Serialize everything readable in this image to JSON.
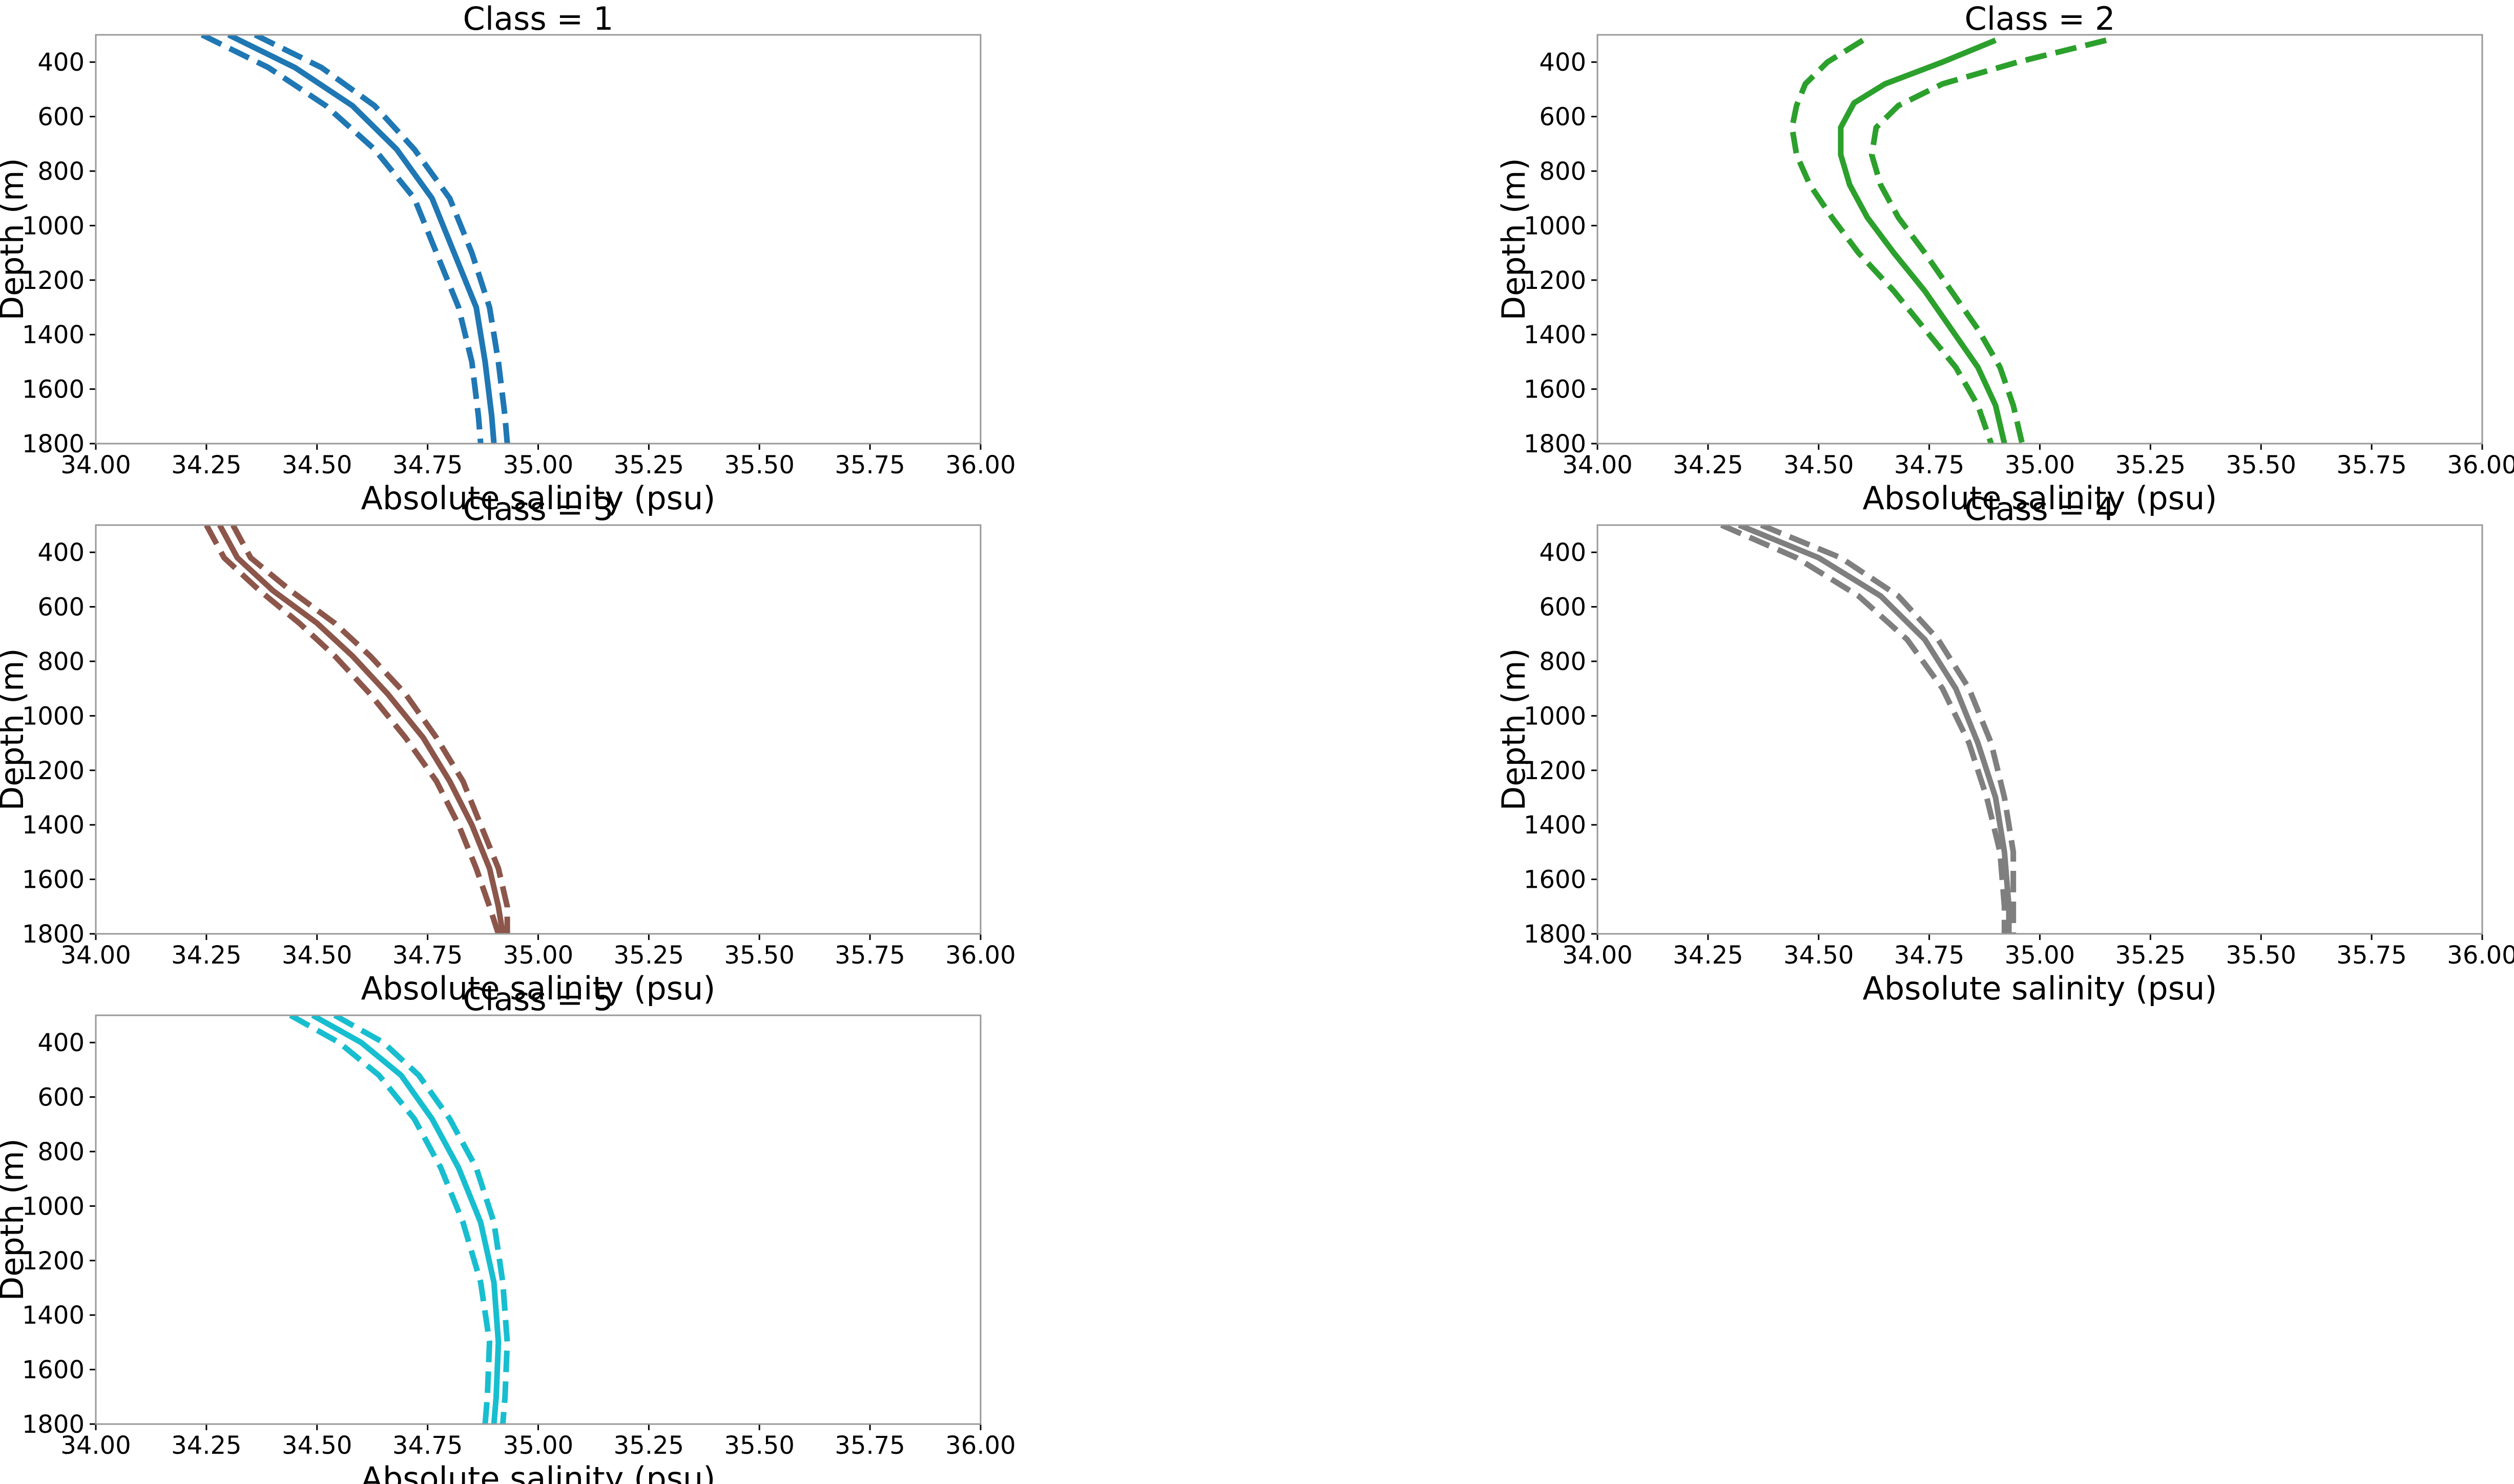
{
  "chart_data": [
    {
      "type": "line",
      "title": "Class = 1",
      "xlabel": "Absolute salinity (psu)",
      "ylabel": "Depth (m)",
      "xlim": [
        34.0,
        36.0
      ],
      "ylim": [
        1800,
        300
      ],
      "y_inverted": true,
      "grid": false,
      "color": "#1f77b4",
      "xticks": [
        "34.00",
        "34.25",
        "34.50",
        "34.75",
        "35.00",
        "35.25",
        "35.50",
        "35.75",
        "36.00"
      ],
      "yticks": [
        "400",
        "600",
        "800",
        "1000",
        "1200",
        "1400",
        "1600",
        "1800"
      ],
      "series": [
        {
          "style": "solid",
          "points": [
            [
              34.3,
              300
            ],
            [
              34.45,
              420
            ],
            [
              34.58,
              560
            ],
            [
              34.68,
              720
            ],
            [
              34.76,
              900
            ],
            [
              34.81,
              1100
            ],
            [
              34.86,
              1300
            ],
            [
              34.88,
              1500
            ],
            [
              34.895,
              1700
            ],
            [
              34.9,
              1800
            ]
          ]
        },
        {
          "style": "dashed",
          "points": [
            [
              34.36,
              300
            ],
            [
              34.51,
              420
            ],
            [
              34.63,
              560
            ],
            [
              34.72,
              720
            ],
            [
              34.8,
              900
            ],
            [
              34.85,
              1100
            ],
            [
              34.89,
              1300
            ],
            [
              34.91,
              1500
            ],
            [
              34.925,
              1700
            ],
            [
              34.93,
              1800
            ]
          ]
        },
        {
          "style": "dashed",
          "points": [
            [
              34.24,
              300
            ],
            [
              34.39,
              420
            ],
            [
              34.52,
              560
            ],
            [
              34.63,
              720
            ],
            [
              34.72,
              900
            ],
            [
              34.77,
              1100
            ],
            [
              34.82,
              1300
            ],
            [
              34.85,
              1500
            ],
            [
              34.865,
              1700
            ],
            [
              34.87,
              1800
            ]
          ]
        }
      ]
    },
    {
      "type": "line",
      "title": "Class = 2",
      "xlabel": "Absolute salinity (psu)",
      "ylabel": "Depth (m)",
      "xlim": [
        34.0,
        36.0
      ],
      "ylim": [
        1800,
        300
      ],
      "y_inverted": true,
      "grid": false,
      "color": "#2ca02c",
      "xticks": [
        "34.00",
        "34.25",
        "34.50",
        "34.75",
        "35.00",
        "35.25",
        "35.50",
        "35.75",
        "36.00"
      ],
      "yticks": [
        "400",
        "600",
        "800",
        "1000",
        "1200",
        "1400",
        "1600",
        "1800"
      ],
      "series": [
        {
          "style": "solid",
          "points": [
            [
              34.9,
              320
            ],
            [
              34.78,
              400
            ],
            [
              34.65,
              480
            ],
            [
              34.58,
              550
            ],
            [
              34.55,
              640
            ],
            [
              34.55,
              740
            ],
            [
              34.57,
              850
            ],
            [
              34.61,
              970
            ],
            [
              34.67,
              1100
            ],
            [
              34.74,
              1240
            ],
            [
              34.8,
              1380
            ],
            [
              34.86,
              1520
            ],
            [
              34.9,
              1660
            ],
            [
              34.92,
              1800
            ]
          ]
        },
        {
          "style": "dashed",
          "points": [
            [
              35.15,
              320
            ],
            [
              34.95,
              400
            ],
            [
              34.78,
              480
            ],
            [
              34.68,
              560
            ],
            [
              34.63,
              640
            ],
            [
              34.62,
              740
            ],
            [
              34.64,
              850
            ],
            [
              34.68,
              970
            ],
            [
              34.74,
              1100
            ],
            [
              34.8,
              1240
            ],
            [
              34.86,
              1380
            ],
            [
              34.91,
              1520
            ],
            [
              34.94,
              1660
            ],
            [
              34.96,
              1800
            ]
          ]
        },
        {
          "style": "dashed",
          "points": [
            [
              34.6,
              320
            ],
            [
              34.52,
              400
            ],
            [
              34.47,
              480
            ],
            [
              34.45,
              560
            ],
            [
              34.44,
              640
            ],
            [
              34.45,
              740
            ],
            [
              34.48,
              850
            ],
            [
              34.53,
              970
            ],
            [
              34.59,
              1100
            ],
            [
              34.67,
              1240
            ],
            [
              34.74,
              1380
            ],
            [
              34.81,
              1520
            ],
            [
              34.86,
              1660
            ],
            [
              34.89,
              1800
            ]
          ]
        }
      ]
    },
    {
      "type": "line",
      "title": "Class = 3",
      "xlabel": "Absolute salinity (psu)",
      "ylabel": "Depth (m)",
      "xlim": [
        34.0,
        36.0
      ],
      "ylim": [
        1800,
        300
      ],
      "y_inverted": true,
      "grid": false,
      "color": "#8c564b",
      "xticks": [
        "34.00",
        "34.25",
        "34.50",
        "34.75",
        "35.00",
        "35.25",
        "35.50",
        "35.75",
        "36.00"
      ],
      "yticks": [
        "400",
        "600",
        "800",
        "1000",
        "1200",
        "1400",
        "1600",
        "1800"
      ],
      "series": [
        {
          "style": "solid",
          "points": [
            [
              34.28,
              300
            ],
            [
              34.32,
              420
            ],
            [
              34.4,
              540
            ],
            [
              34.5,
              660
            ],
            [
              34.58,
              780
            ],
            [
              34.66,
              920
            ],
            [
              34.74,
              1080
            ],
            [
              34.8,
              1240
            ],
            [
              34.85,
              1400
            ],
            [
              34.89,
              1560
            ],
            [
              34.91,
              1700
            ],
            [
              34.92,
              1800
            ]
          ]
        },
        {
          "style": "dashed",
          "points": [
            [
              34.31,
              300
            ],
            [
              34.35,
              420
            ],
            [
              34.44,
              540
            ],
            [
              34.54,
              660
            ],
            [
              34.62,
              780
            ],
            [
              34.7,
              920
            ],
            [
              34.77,
              1080
            ],
            [
              34.83,
              1240
            ],
            [
              34.87,
              1400
            ],
            [
              34.91,
              1560
            ],
            [
              34.93,
              1700
            ],
            [
              34.93,
              1800
            ]
          ]
        },
        {
          "style": "dashed",
          "points": [
            [
              34.25,
              300
            ],
            [
              34.29,
              420
            ],
            [
              34.37,
              540
            ],
            [
              34.46,
              660
            ],
            [
              34.54,
              780
            ],
            [
              34.62,
              920
            ],
            [
              34.7,
              1080
            ],
            [
              34.77,
              1240
            ],
            [
              34.82,
              1400
            ],
            [
              34.86,
              1560
            ],
            [
              34.89,
              1700
            ],
            [
              34.91,
              1800
            ]
          ]
        }
      ]
    },
    {
      "type": "line",
      "title": "Class = 4",
      "xlabel": "Absolute salinity (psu)",
      "ylabel": "Depth (m)",
      "xlim": [
        34.0,
        36.0
      ],
      "ylim": [
        1800,
        300
      ],
      "y_inverted": true,
      "grid": false,
      "color": "#7f7f7f",
      "xticks": [
        "34.00",
        "34.25",
        "34.50",
        "34.75",
        "35.00",
        "35.25",
        "35.50",
        "35.75",
        "36.00"
      ],
      "yticks": [
        "400",
        "600",
        "800",
        "1000",
        "1200",
        "1400",
        "1600",
        "1800"
      ],
      "series": [
        {
          "style": "solid",
          "points": [
            [
              34.32,
              300
            ],
            [
              34.5,
              420
            ],
            [
              34.64,
              560
            ],
            [
              34.74,
              720
            ],
            [
              34.81,
              900
            ],
            [
              34.86,
              1100
            ],
            [
              34.9,
              1300
            ],
            [
              34.92,
              1500
            ],
            [
              34.93,
              1700
            ],
            [
              34.93,
              1800
            ]
          ]
        },
        {
          "style": "dashed",
          "points": [
            [
              34.37,
              300
            ],
            [
              34.55,
              420
            ],
            [
              34.68,
              560
            ],
            [
              34.77,
              720
            ],
            [
              34.84,
              900
            ],
            [
              34.89,
              1100
            ],
            [
              34.92,
              1300
            ],
            [
              34.94,
              1500
            ],
            [
              34.94,
              1700
            ],
            [
              34.94,
              1800
            ]
          ]
        },
        {
          "style": "dashed",
          "points": [
            [
              34.28,
              300
            ],
            [
              34.45,
              420
            ],
            [
              34.59,
              560
            ],
            [
              34.7,
              720
            ],
            [
              34.78,
              900
            ],
            [
              34.84,
              1100
            ],
            [
              34.88,
              1300
            ],
            [
              34.91,
              1500
            ],
            [
              34.92,
              1700
            ],
            [
              34.92,
              1800
            ]
          ]
        }
      ]
    },
    {
      "type": "line",
      "title": "Class = 5",
      "xlabel": "Absolute salinity (psu)",
      "ylabel": "Depth (m)",
      "xlim": [
        34.0,
        36.0
      ],
      "ylim": [
        1800,
        300
      ],
      "y_inverted": true,
      "grid": false,
      "color": "#17becf",
      "xticks": [
        "34.00",
        "34.25",
        "34.50",
        "34.75",
        "35.00",
        "35.25",
        "35.50",
        "35.75",
        "36.00"
      ],
      "yticks": [
        "400",
        "600",
        "800",
        "1000",
        "1200",
        "1400",
        "1600",
        "1800"
      ],
      "series": [
        {
          "style": "solid",
          "points": [
            [
              34.49,
              300
            ],
            [
              34.6,
              400
            ],
            [
              34.69,
              520
            ],
            [
              34.76,
              680
            ],
            [
              34.82,
              860
            ],
            [
              34.87,
              1060
            ],
            [
              34.9,
              1280
            ],
            [
              34.91,
              1500
            ],
            [
              34.905,
              1700
            ],
            [
              34.9,
              1800
            ]
          ]
        },
        {
          "style": "dashed",
          "points": [
            [
              34.54,
              300
            ],
            [
              34.65,
              400
            ],
            [
              34.73,
              520
            ],
            [
              34.8,
              680
            ],
            [
              34.86,
              860
            ],
            [
              34.9,
              1060
            ],
            [
              34.92,
              1280
            ],
            [
              34.93,
              1500
            ],
            [
              34.925,
              1700
            ],
            [
              34.92,
              1800
            ]
          ]
        },
        {
          "style": "dashed",
          "points": [
            [
              34.44,
              300
            ],
            [
              34.55,
              400
            ],
            [
              34.64,
              520
            ],
            [
              34.72,
              680
            ],
            [
              34.78,
              860
            ],
            [
              34.83,
              1060
            ],
            [
              34.87,
              1280
            ],
            [
              34.89,
              1500
            ],
            [
              34.885,
              1700
            ],
            [
              34.88,
              1800
            ]
          ]
        }
      ]
    }
  ]
}
